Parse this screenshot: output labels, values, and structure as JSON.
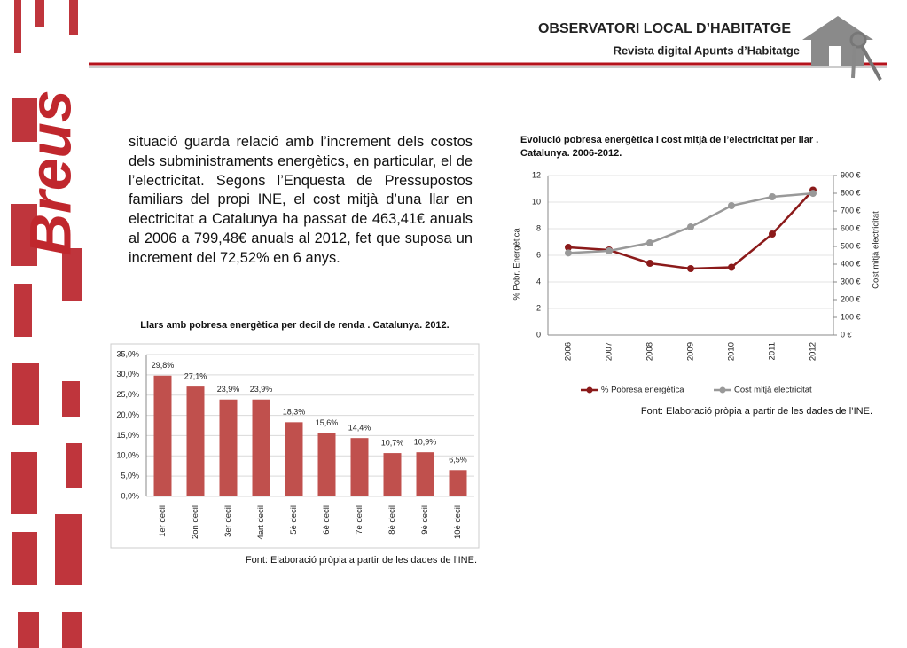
{
  "header": {
    "title": "OBSERVATORI LOCAL D’HABITATGE",
    "subtitle": "Revista digital Apunts d’Habitatge"
  },
  "side_label": "Breus",
  "body_text": "situació guarda relació amb l’increment dels costos dels subministraments energètics, en particular, el de l’electricitat. Segons l’Enquesta de Pressupostos familiars del propi INE, el cost mitjà d’una llar en electricitat a Catalunya ha passat de 463,41€ anuals al 2006 a 799,48€ anuals al 2012, fet que suposa un increment del 72,52% en 6 anys.",
  "chart_data": [
    {
      "type": "bar",
      "title": "Llars amb pobresa energètica per decil de renda . Catalunya. 2012.",
      "categories": [
        "1er decil",
        "2on decil",
        "3er decil",
        "4art decil",
        "5è decil",
        "6è decil",
        "7è decil",
        "8è decil",
        "9è decil",
        "10è decil"
      ],
      "values": [
        29.8,
        27.1,
        23.9,
        23.9,
        18.3,
        15.6,
        14.4,
        10.7,
        10.9,
        6.5
      ],
      "value_labels": [
        "29,8%",
        "27,1%",
        "23,9%",
        "23,9%",
        "18,3%",
        "15,6%",
        "14,4%",
        "10,7%",
        "10,9%",
        "6,5%"
      ],
      "color": "#c0504d",
      "ylim": [
        0,
        35
      ],
      "yticks": [
        {
          "value": 0,
          "label": "0,0%"
        },
        {
          "value": 5,
          "label": "5,0%"
        },
        {
          "value": 10,
          "label": "10,0%"
        },
        {
          "value": 15,
          "label": "15,0%"
        },
        {
          "value": 20,
          "label": "20,0%"
        },
        {
          "value": 25,
          "label": "25,0%"
        },
        {
          "value": 30,
          "label": "30,0%"
        },
        {
          "value": 35,
          "label": "35,0%"
        }
      ],
      "grid": true,
      "source": "Font: Elaboració pròpia a partir de les dades de l’INE."
    },
    {
      "type": "line",
      "title": "Evolució pobresa energètica i cost mitjà de l’electricitat per llar . Catalunya. 2006-2012.",
      "categories": [
        "2006",
        "2007",
        "2008",
        "2009",
        "2010",
        "2011",
        "2012"
      ],
      "series": [
        {
          "name": "% Pobresa energètica",
          "color": "#8b1a1a",
          "values": [
            6.6,
            6.4,
            5.4,
            5.0,
            5.1,
            7.6,
            10.9
          ]
        },
        {
          "name": "Cost mitjà electricitat",
          "color": "#999999",
          "axis": "y2",
          "values": [
            463.41,
            475,
            520,
            610,
            730,
            780,
            799.48
          ]
        }
      ],
      "ylabel": "% Pobr. Energètica",
      "y2label": "Cost mitjà electricitat",
      "ylim": [
        0,
        12
      ],
      "yticks": [
        0,
        2,
        4,
        6,
        8,
        10,
        12
      ],
      "y2lim": [
        0,
        900
      ],
      "y2ticks": [
        {
          "value": 0,
          "label": "0 €"
        },
        {
          "value": 100,
          "label": "100 €"
        },
        {
          "value": 200,
          "label": "200 €"
        },
        {
          "value": 300,
          "label": "300 €"
        },
        {
          "value": 400,
          "label": "400 €"
        },
        {
          "value": 500,
          "label": "500 €"
        },
        {
          "value": 600,
          "label": "600 €"
        },
        {
          "value": 700,
          "label": "700 €"
        },
        {
          "value": 800,
          "label": "800 €"
        },
        {
          "value": 900,
          "label": "900 €"
        }
      ],
      "grid": true,
      "legend": "bottom",
      "source": "Font: Elaboració pròpia a partir de les dades de l’INE."
    }
  ]
}
